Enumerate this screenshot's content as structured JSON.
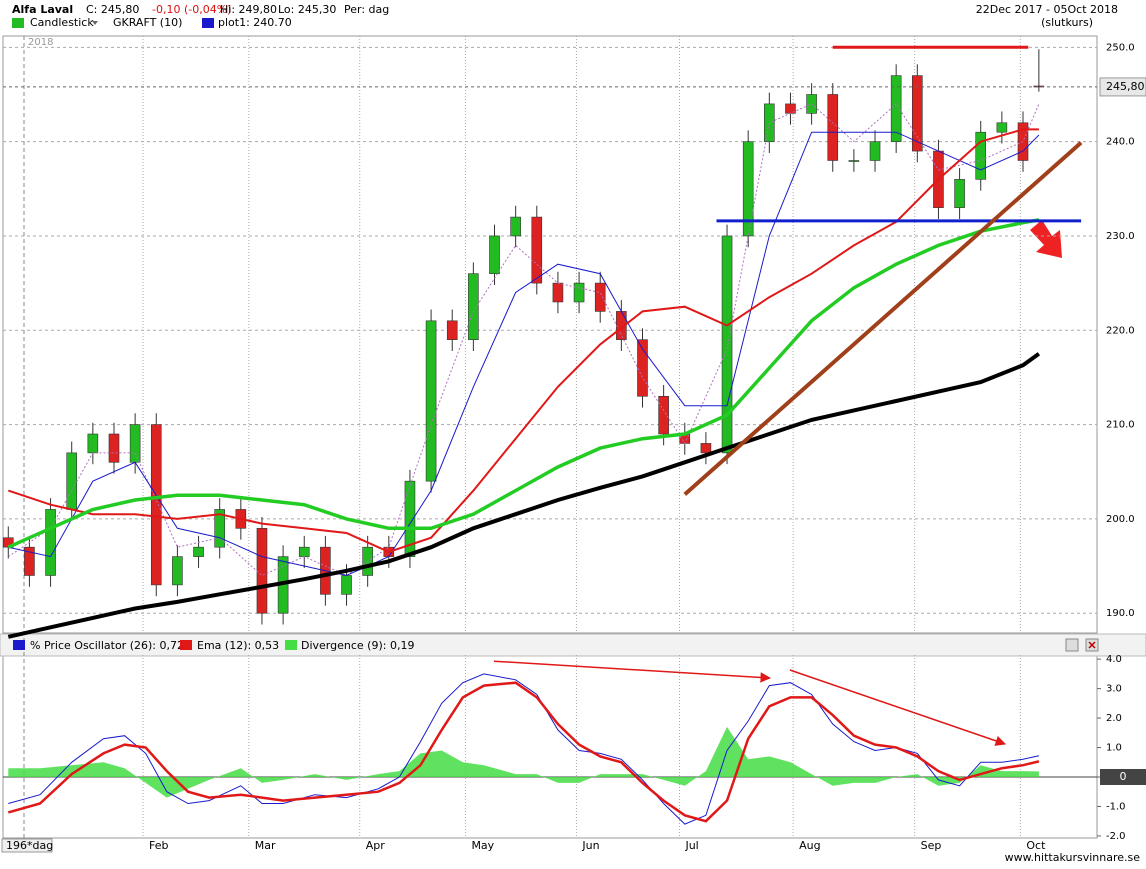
{
  "header": {
    "title": "Alfa Laval",
    "close": "C: 245,80",
    "change": "-0,10 (-0,04%)",
    "high": "Hi: 249,80",
    "low": "Lo: 245,30",
    "period": "Per: dag",
    "date_range": "22Dec 2017 - 05Oct 2018",
    "price_mode": "(slutkurs)"
  },
  "footer": "www.hittakursvinnare.se",
  "chart_data": [
    {
      "type": "candlestick",
      "name": "Candlestick",
      "year_label": "2018",
      "last_label": "245,80",
      "up_color": "#22bb22",
      "down_color": "#dd2222",
      "grid": true,
      "xlim": [
        -1,
        206
      ],
      "ylim": [
        187.9,
        251.2
      ],
      "yticks": [
        {
          "value": 190,
          "label": "190.0"
        },
        {
          "value": 200,
          "label": "200.0"
        },
        {
          "value": 210,
          "label": "210.0"
        },
        {
          "value": 220,
          "label": "220.0"
        },
        {
          "value": 230,
          "label": "230.0"
        },
        {
          "value": 240,
          "label": "240.0"
        },
        {
          "value": 250,
          "label": "250.0"
        }
      ],
      "x": [
        0,
        4,
        8,
        12,
        16,
        20,
        24,
        28,
        32,
        36,
        40,
        44,
        48,
        52,
        56,
        60,
        64,
        68,
        72,
        76,
        80,
        84,
        88,
        92,
        96,
        100,
        104,
        108,
        112,
        116,
        120,
        124,
        128,
        132,
        136,
        140,
        144,
        148,
        152,
        156,
        160,
        164,
        168,
        172,
        176,
        180,
        184,
        188,
        192,
        195
      ],
      "open": [
        198,
        197,
        194,
        201,
        207,
        209,
        206,
        210,
        193,
        196,
        197,
        201,
        199,
        190,
        196,
        197,
        192,
        194,
        197,
        196,
        204,
        221,
        219,
        226,
        230,
        232,
        225,
        223,
        225,
        222,
        219,
        213,
        209,
        208,
        207,
        230,
        240,
        244,
        243,
        245,
        238,
        238,
        240,
        247,
        239,
        233,
        236,
        241,
        242,
        245.9
      ],
      "high": [
        199.2,
        198.2,
        202.2,
        208.2,
        210.2,
        210.2,
        211.2,
        211.2,
        197.2,
        198.2,
        202.2,
        202.2,
        200.2,
        197.2,
        198.2,
        198.2,
        195.2,
        198.2,
        198.2,
        205.2,
        222.2,
        222.2,
        227.2,
        231.2,
        233.2,
        233.2,
        226.2,
        226.2,
        226.2,
        223.2,
        220.2,
        214.2,
        210.2,
        209.2,
        231.2,
        241.2,
        245.2,
        245.2,
        246.2,
        246.2,
        239.2,
        241.2,
        248.2,
        248.2,
        240.2,
        237.2,
        242.2,
        243.2,
        243.2,
        249.8
      ],
      "low": [
        195.8,
        192.8,
        192.8,
        199.8,
        205.8,
        204.8,
        204.8,
        191.8,
        191.8,
        194.8,
        195.8,
        197.8,
        188.8,
        188.8,
        194.8,
        190.8,
        190.8,
        192.8,
        194.8,
        194.8,
        202.8,
        217.8,
        217.8,
        224.8,
        228.8,
        223.8,
        221.8,
        221.8,
        220.8,
        217.8,
        211.8,
        207.8,
        206.8,
        205.8,
        205.8,
        228.8,
        238.8,
        241.8,
        241.8,
        236.8,
        236.8,
        236.8,
        238.8,
        237.8,
        231.8,
        231.8,
        234.8,
        239.8,
        236.8,
        245.3
      ],
      "close": [
        197,
        194,
        201,
        207,
        209,
        206,
        210,
        193,
        196,
        197,
        201,
        199,
        190,
        196,
        197,
        192,
        194,
        197,
        196,
        204,
        221,
        219,
        226,
        230,
        232,
        225,
        223,
        225,
        222,
        219,
        213,
        209,
        208,
        207,
        230,
        240,
        244,
        243,
        245,
        238,
        238,
        240,
        247,
        239,
        233,
        236,
        241,
        242,
        238,
        245.8
      ],
      "series": [
        {
          "name": "GKRAFT (10)",
          "color": "#b070c0",
          "width": 1,
          "dash": true,
          "x": [
            0,
            8,
            16,
            24,
            32,
            40,
            48,
            56,
            64,
            72,
            80,
            88,
            96,
            104,
            112,
            120,
            128,
            136,
            144,
            152,
            160,
            168,
            176,
            184,
            192,
            195
          ],
          "y": [
            196,
            199,
            207,
            207,
            197,
            198,
            194,
            196,
            194,
            197,
            210,
            222,
            229,
            225,
            224,
            215,
            208,
            218,
            242,
            244,
            240,
            244,
            237,
            238,
            240,
            244
          ]
        },
        {
          "name": "plot1: 240.70",
          "color": "#1a1acc",
          "width": 1,
          "dash": false,
          "x": [
            0,
            8,
            16,
            24,
            32,
            40,
            48,
            56,
            64,
            72,
            80,
            88,
            96,
            104,
            112,
            120,
            128,
            136,
            144,
            152,
            160,
            168,
            176,
            184,
            192,
            195
          ],
          "y": [
            197,
            196,
            204,
            206,
            199,
            198,
            196,
            195,
            194,
            196,
            203,
            214,
            224,
            227,
            226,
            218,
            212,
            212,
            230,
            241,
            241,
            241,
            239,
            237,
            239,
            240.7
          ]
        },
        {
          "color": "#e01818",
          "width": 2,
          "dash": false,
          "x": [
            0,
            8,
            16,
            24,
            32,
            40,
            48,
            56,
            64,
            72,
            80,
            88,
            96,
            104,
            112,
            120,
            128,
            136,
            144,
            152,
            160,
            168,
            176,
            184,
            192,
            195
          ],
          "y": [
            203,
            201.5,
            200.5,
            200.5,
            200,
            200.5,
            199.5,
            199,
            198.5,
            196.5,
            198,
            203,
            208.5,
            214,
            218.5,
            222,
            222.5,
            220.5,
            223.5,
            226,
            229,
            231.5,
            236,
            240,
            241.3,
            241.3
          ]
        },
        {
          "color": "#22cc22",
          "width": 3.5,
          "dash": false,
          "x": [
            0,
            8,
            16,
            24,
            32,
            40,
            48,
            56,
            64,
            72,
            80,
            88,
            96,
            104,
            112,
            120,
            128,
            136,
            144,
            152,
            160,
            168,
            176,
            184,
            192,
            195
          ],
          "y": [
            197,
            199,
            201,
            202,
            202.5,
            202.5,
            202,
            201.5,
            200,
            199,
            199,
            200.5,
            203,
            205.5,
            207.5,
            208.5,
            209,
            211,
            216,
            221,
            224.5,
            227,
            229,
            230.5,
            231.4,
            231.7
          ]
        },
        {
          "color": "#000000",
          "width": 4,
          "dash": false,
          "x": [
            0,
            8,
            16,
            24,
            32,
            40,
            48,
            56,
            64,
            72,
            80,
            88,
            96,
            104,
            112,
            120,
            128,
            136,
            144,
            152,
            160,
            168,
            176,
            184,
            192,
            195
          ],
          "y": [
            187.5,
            188.5,
            189.5,
            190.5,
            191.2,
            192,
            192.8,
            193.6,
            194.5,
            195.5,
            197,
            199,
            200.5,
            202,
            203.3,
            204.5,
            206,
            207.5,
            209,
            210.5,
            211.5,
            212.5,
            213.5,
            214.5,
            216.3,
            217.5
          ]
        }
      ],
      "lines": [
        {
          "color": "#e01818",
          "width": 3,
          "x": [
            156,
            193
          ],
          "y": [
            250,
            250
          ]
        },
        {
          "color": "#1020cc",
          "width": 3,
          "x": [
            134,
            203
          ],
          "y": [
            231.6,
            231.6
          ]
        },
        {
          "color": "#a0401a",
          "width": 4,
          "x": [
            128,
            203
          ],
          "y": [
            202.6,
            239.9
          ]
        }
      ]
    },
    {
      "type": "oscillator",
      "period_label": "196*dag",
      "grid": false,
      "xlim": [
        -1,
        206
      ],
      "ylim": [
        -2.07,
        4.14
      ],
      "xticks": [
        {
          "value": 25.5,
          "label": "Feb"
        },
        {
          "value": 45.5,
          "label": "Mar"
        },
        {
          "value": 66.5,
          "label": "Apr"
        },
        {
          "value": 86.5,
          "label": "May"
        },
        {
          "value": 107.5,
          "label": "Jun"
        },
        {
          "value": 127,
          "label": "Jul"
        },
        {
          "value": 148.5,
          "label": "Aug"
        },
        {
          "value": 171.5,
          "label": "Sep"
        },
        {
          "value": 191.5,
          "label": "Oct"
        }
      ],
      "yticks": [
        {
          "value": -2,
          "label": "-2.0"
        },
        {
          "value": -1,
          "label": "-1.0"
        },
        0,
        {
          "value": 1,
          "label": "1.0"
        },
        {
          "value": 2,
          "label": "2.0"
        },
        {
          "value": 3,
          "label": "3.0"
        },
        {
          "value": 4,
          "label": "4.0"
        }
      ],
      "x": [
        0,
        6,
        12,
        18,
        22,
        26,
        30,
        34,
        38,
        44,
        48,
        52,
        58,
        64,
        70,
        74,
        78,
        82,
        86,
        90,
        96,
        100,
        104,
        108,
        112,
        116,
        120,
        124,
        128,
        132,
        136,
        140,
        144,
        148,
        152,
        156,
        160,
        164,
        168,
        172,
        176,
        180,
        184,
        188,
        192,
        195
      ],
      "series": [
        {
          "name": "Divergence (9): 0,19",
          "color": "#44dd44",
          "kind": "area",
          "values": [
            0.3,
            0.3,
            0.4,
            0.5,
            0.3,
            -0.2,
            -0.7,
            -0.4,
            -0.1,
            0.3,
            -0.2,
            -0.1,
            0.1,
            -0.1,
            0.1,
            0.2,
            0.8,
            0.9,
            0.5,
            0.4,
            0.1,
            0.1,
            -0.2,
            -0.2,
            0.1,
            0.1,
            0.1,
            -0.1,
            -0.3,
            0.2,
            1.7,
            0.6,
            0.7,
            0.5,
            0.1,
            -0.3,
            -0.2,
            -0.2,
            0,
            0.1,
            -0.3,
            -0.2,
            0.4,
            0.2,
            0.2,
            0.19
          ]
        },
        {
          "name": "% Price Oscillator (26): 0,72",
          "color": "#1a1acc",
          "kind": "line",
          "width": 1,
          "values": [
            -0.9,
            -0.6,
            0.5,
            1.3,
            1.4,
            0.8,
            -0.5,
            -0.9,
            -0.8,
            -0.3,
            -0.9,
            -0.9,
            -0.6,
            -0.7,
            -0.4,
            0.0,
            1.2,
            2.5,
            3.2,
            3.5,
            3.3,
            2.8,
            1.6,
            0.9,
            0.8,
            0.6,
            -0.1,
            -0.9,
            -1.6,
            -1.3,
            0.9,
            1.9,
            3.1,
            3.2,
            2.8,
            1.8,
            1.2,
            0.9,
            1.0,
            0.8,
            -0.1,
            -0.3,
            0.5,
            0.5,
            0.6,
            0.72
          ]
        },
        {
          "name": "Ema (12): 0,53",
          "color": "#e01818",
          "kind": "line",
          "width": 2.5,
          "values": [
            -1.2,
            -0.9,
            0.1,
            0.8,
            1.1,
            1.0,
            0.2,
            -0.5,
            -0.7,
            -0.6,
            -0.7,
            -0.8,
            -0.7,
            -0.6,
            -0.5,
            -0.2,
            0.4,
            1.6,
            2.7,
            3.1,
            3.2,
            2.7,
            1.8,
            1.1,
            0.7,
            0.5,
            -0.2,
            -0.8,
            -1.3,
            -1.5,
            -0.8,
            1.3,
            2.4,
            2.7,
            2.7,
            2.1,
            1.4,
            1.1,
            1.0,
            0.7,
            0.2,
            -0.1,
            0.1,
            0.3,
            0.4,
            0.53
          ]
        }
      ],
      "lines": [
        {
          "color": "#e01818",
          "width": 1.5,
          "x": [
            91.9,
            144.1
          ],
          "y": [
            3.93,
            3.36
          ]
        },
        {
          "color": "#e01818",
          "width": 1.5,
          "x": [
            147.9,
            188.6
          ],
          "y": [
            3.63,
            1.12
          ]
        }
      ]
    }
  ]
}
